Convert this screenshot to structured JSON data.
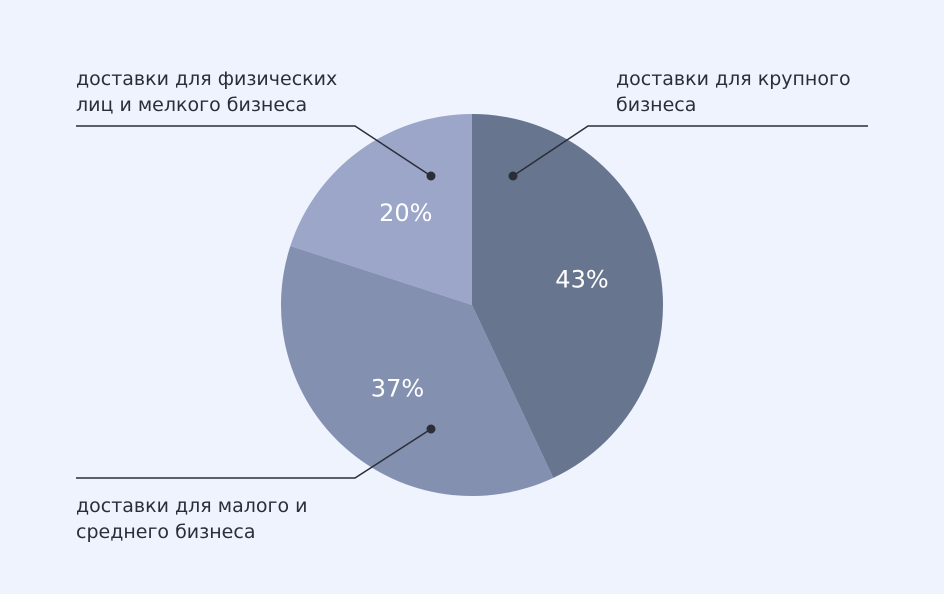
{
  "chart_data": {
    "type": "pie",
    "categories": [
      "доставки для крупного бизнеса",
      "доставки для малого и среднего бизнеса",
      "доставки для физических лиц и мелкого бизнеса"
    ],
    "values": [
      43,
      37,
      20
    ],
    "value_labels": [
      "43%",
      "37%",
      "20%"
    ],
    "colors": [
      "#67758f",
      "#8390b0",
      "#9ba6c9"
    ]
  }
}
